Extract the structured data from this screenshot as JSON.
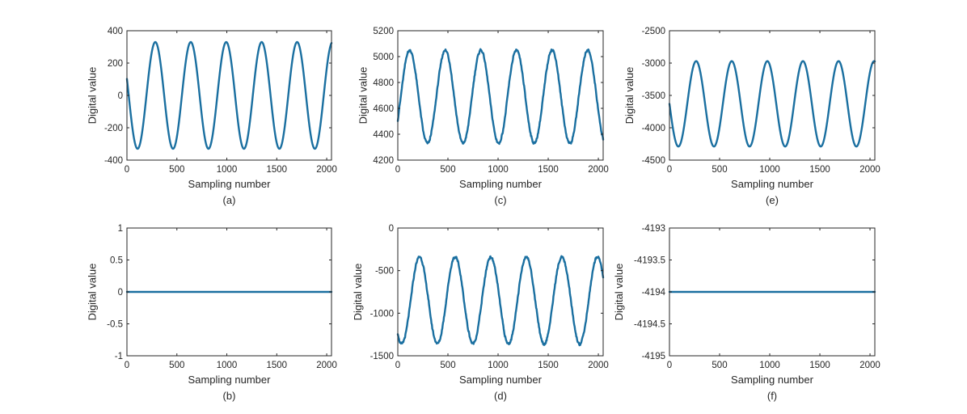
{
  "colors": {
    "series": "#1a6fa0",
    "axis": "#262626",
    "background": "#ffffff"
  },
  "chart_data": [
    {
      "id": "a",
      "caption": "(a)",
      "type": "line",
      "xlabel": "Sampling number",
      "ylabel": "Digital value",
      "xlim": [
        0,
        2048
      ],
      "ylim": [
        -400,
        400
      ],
      "xticks": [
        0,
        500,
        1000,
        1500,
        2000
      ],
      "yticks": [
        -400,
        -200,
        0,
        200,
        400
      ],
      "grid": false,
      "series": [
        {
          "kind": "sine",
          "offset": 0,
          "amplitude": 330,
          "period_samples": 355,
          "phase_deg": 162,
          "x_start": 0,
          "x_end": 2048,
          "noise": 0
        }
      ]
    },
    {
      "id": "c",
      "caption": "(c)",
      "type": "line",
      "xlabel": "Sampling number",
      "ylabel": "Digital value",
      "xlim": [
        0,
        2048
      ],
      "ylim": [
        4200,
        5200
      ],
      "xticks": [
        0,
        500,
        1000,
        1500,
        2000
      ],
      "yticks": [
        4200,
        4400,
        4600,
        4800,
        5000,
        5200
      ],
      "grid": false,
      "series": [
        {
          "kind": "sine",
          "offset": 4690,
          "amplitude": 360,
          "period_samples": 355,
          "phase_deg": -30,
          "x_start": 0,
          "x_end": 2048,
          "noise": 12
        }
      ]
    },
    {
      "id": "e",
      "caption": "(e)",
      "type": "line",
      "xlabel": "Sampling number",
      "ylabel": "Digital value",
      "xlim": [
        0,
        2048
      ],
      "ylim": [
        -4500,
        -2500
      ],
      "xticks": [
        0,
        500,
        1000,
        1500,
        2000
      ],
      "yticks": [
        -4500,
        -4000,
        -3500,
        -3000,
        -2500
      ],
      "grid": false,
      "series": [
        {
          "kind": "sine",
          "offset": -3630,
          "amplitude": 660,
          "period_samples": 355,
          "phase_deg": 180,
          "x_start": 0,
          "x_end": 2048,
          "noise": 0
        }
      ]
    },
    {
      "id": "b",
      "caption": "(b)",
      "type": "line",
      "xlabel": "Sampling number",
      "ylabel": "Digital value",
      "xlim": [
        0,
        2048
      ],
      "ylim": [
        -1,
        1
      ],
      "xticks": [
        0,
        500,
        1000,
        1500,
        2000
      ],
      "yticks": [
        -1,
        -0.5,
        0,
        0.5,
        1
      ],
      "grid": false,
      "series": [
        {
          "kind": "constant",
          "offset": 0,
          "x_start": 0,
          "x_end": 2048
        }
      ]
    },
    {
      "id": "d",
      "caption": "(d)",
      "type": "line",
      "xlabel": "Sampling number",
      "ylabel": "Digital value",
      "xlim": [
        0,
        2048
      ],
      "ylim": [
        -1500,
        0
      ],
      "xticks": [
        0,
        500,
        1000,
        1500,
        2000
      ],
      "yticks": [
        -1500,
        -1000,
        -500,
        0
      ],
      "grid": false,
      "series": [
        {
          "kind": "sine",
          "offset": -850,
          "amplitude": 510,
          "period_samples": 355,
          "phase_deg": 230,
          "x_start": 0,
          "x_end": 2048,
          "noise": 20
        }
      ]
    },
    {
      "id": "f",
      "caption": "(f)",
      "type": "line",
      "xlabel": "Sampling number",
      "ylabel": "Digital value",
      "xlim": [
        0,
        2048
      ],
      "ylim": [
        -4195,
        -4193
      ],
      "xticks": [
        0,
        500,
        1000,
        1500,
        2000
      ],
      "yticks": [
        -4195,
        -4194.5,
        -4194,
        -4193.5,
        -4193
      ],
      "grid": false,
      "series": [
        {
          "kind": "constant",
          "offset": -4194,
          "x_start": 0,
          "x_end": 2048
        }
      ]
    }
  ]
}
